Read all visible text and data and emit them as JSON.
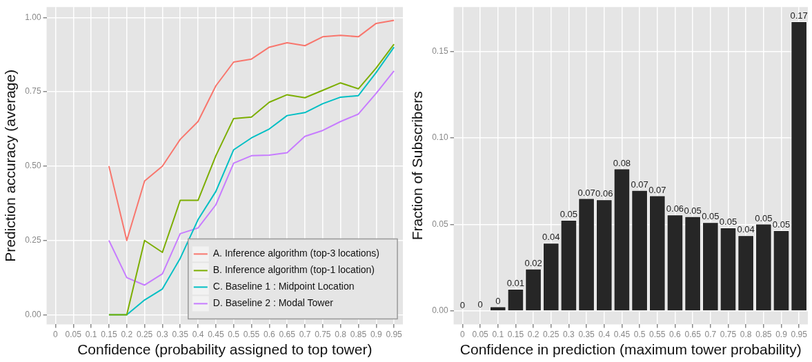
{
  "chart_data": [
    {
      "type": "line",
      "xlabel": "Confidence (probability assigned to top tower)",
      "ylabel": "Prediction accuracy (average)",
      "categories": [
        "0",
        "0.05",
        "0.1",
        "0.15",
        "0.2",
        "0.25",
        "0.3",
        "0.35",
        "0.4",
        "0.45",
        "0.5",
        "0.55",
        "0.6",
        "0.65",
        "0.7",
        "0.75",
        "0.8",
        "0.85",
        "0.9",
        "0.95"
      ],
      "series": [
        {
          "name": "A. Inference algorithm (top-3 locations)",
          "color": "#f8766d",
          "values": [
            null,
            null,
            null,
            0.5,
            0.25,
            0.45,
            0.5,
            0.59,
            0.65,
            0.77,
            0.85,
            0.86,
            0.9,
            0.915,
            0.905,
            0.935,
            0.94,
            0.935,
            0.98,
            0.99
          ]
        },
        {
          "name": "B. Inference algorithm (top-1 location)",
          "color": "#7cae00",
          "values": [
            null,
            null,
            null,
            0,
            0,
            0.25,
            0.21,
            0.385,
            0.385,
            0.535,
            0.66,
            0.665,
            0.715,
            0.74,
            0.73,
            0.755,
            0.78,
            0.76,
            0.83,
            0.91
          ]
        },
        {
          "name": "C. Baseline 1 : Midpoint Location",
          "color": "#00bfc4",
          "values": [
            null,
            null,
            null,
            0,
            0,
            0.05,
            0.087,
            0.19,
            0.32,
            0.415,
            0.555,
            0.595,
            0.625,
            0.67,
            0.68,
            0.71,
            0.732,
            0.737,
            0.815,
            0.9
          ]
        },
        {
          "name": "D. Baseline 2 : Modal Tower",
          "color": "#c77cff",
          "values": [
            null,
            null,
            null,
            0.25,
            0.125,
            0.1,
            0.138,
            0.273,
            0.292,
            0.37,
            0.51,
            0.535,
            0.537,
            0.545,
            0.6,
            0.62,
            0.65,
            0.675,
            0.745,
            0.82
          ]
        }
      ],
      "ylim": [
        -0.032,
        1.035
      ],
      "yticks": [
        {
          "value": 0,
          "label": "0.00"
        },
        {
          "value": 0.25,
          "label": "0.25"
        },
        {
          "value": 0.5,
          "label": "0.50"
        },
        {
          "value": 0.75,
          "label": "0.75"
        },
        {
          "value": 1,
          "label": "1.00"
        }
      ],
      "grid": true,
      "legend": "bottom right"
    },
    {
      "type": "bar",
      "xlabel": "Confidence in prediction (maximum tower probability)",
      "ylabel": "Fraction of Subscribers",
      "categories": [
        "0",
        "0.05",
        "0.1",
        "0.15",
        "0.2",
        "0.25",
        "0.3",
        "0.35",
        "0.4",
        "0.45",
        "0.5",
        "0.55",
        "0.6",
        "0.65",
        "0.7",
        "0.75",
        "0.8",
        "0.85",
        "0.9",
        "0.95"
      ],
      "values": [
        0,
        0.0003,
        0.0026,
        0.0128,
        0.0244,
        0.0394,
        0.0526,
        0.0652,
        0.0645,
        0.0823,
        0.0699,
        0.0668,
        0.0557,
        0.0547,
        0.0513,
        0.0483,
        0.0438,
        0.0504,
        0.0467,
        0.1674
      ],
      "value_labels": [
        "0",
        "0",
        "0",
        "0.01",
        "0.02",
        "0.04",
        "0.05",
        "0.07",
        "0.06",
        "0.08",
        "0.07",
        "0.07",
        "0.06",
        "0.05",
        "0.05",
        "0.05",
        "0.04",
        "0.05",
        "0.05",
        "0.17"
      ],
      "color": "#262626",
      "ylim": [
        -0.0077,
        0.1757
      ],
      "yticks": [
        {
          "value": 0,
          "label": "0.00"
        },
        {
          "value": 0.05,
          "label": "0.05"
        },
        {
          "value": 0.1,
          "label": "0.10"
        },
        {
          "value": 0.15,
          "label": "0.15"
        }
      ],
      "grid": true
    }
  ]
}
